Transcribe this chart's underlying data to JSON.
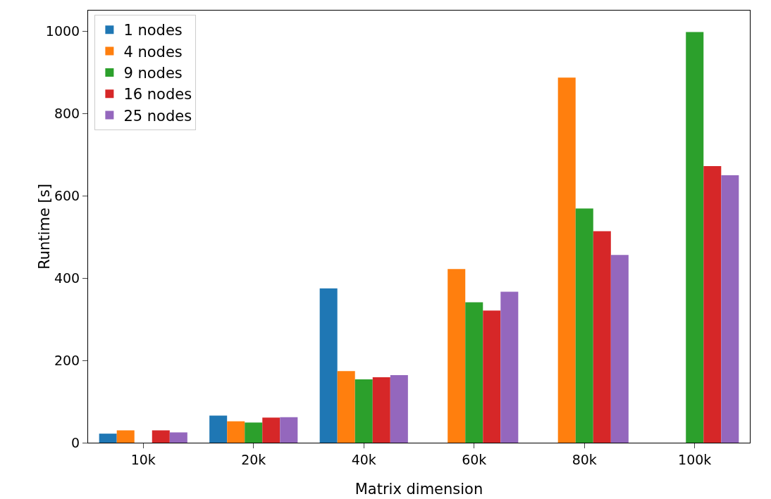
{
  "chart_data": {
    "type": "bar",
    "xlabel": "Matrix dimension",
    "ylabel": "Runtime [s]",
    "categories": [
      "10k",
      "20k",
      "40k",
      "60k",
      "80k",
      "100k"
    ],
    "series": [
      {
        "name": "1 nodes",
        "color": "#1f77b4",
        "values": [
          22,
          66,
          375,
          null,
          null,
          null
        ]
      },
      {
        "name": "4 nodes",
        "color": "#ff7f0e",
        "values": [
          30,
          52,
          174,
          422,
          887,
          null
        ]
      },
      {
        "name": "9 nodes",
        "color": "#2ca02c",
        "values": [
          null,
          49,
          154,
          341,
          569,
          998
        ]
      },
      {
        "name": "16 nodes",
        "color": "#d62728",
        "values": [
          30,
          61,
          159,
          321,
          514,
          672
        ]
      },
      {
        "name": "25 nodes",
        "color": "#9467bd",
        "values": [
          25,
          62,
          164,
          367,
          456,
          650
        ]
      }
    ],
    "ylim": [
      0,
      1050
    ],
    "yticks": [
      0,
      200,
      400,
      600,
      800,
      1000
    ],
    "grid": false,
    "legend": "top left"
  }
}
